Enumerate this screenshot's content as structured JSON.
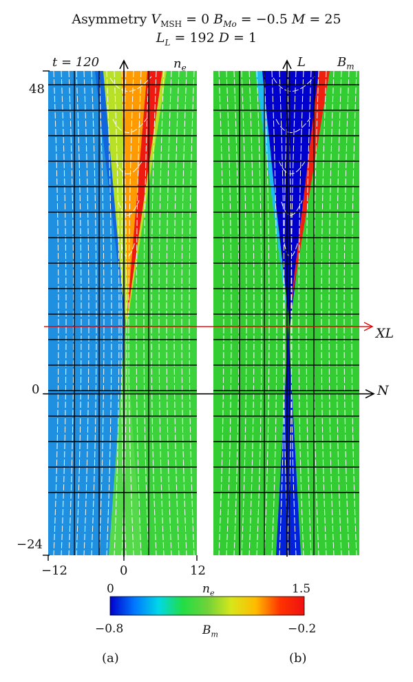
{
  "title": {
    "line1": {
      "prefix": "Asymmetry ",
      "v": "V",
      "v_sub": "MSH",
      "eq1": " = 0 ",
      "b": "B",
      "b_sub": "Mo",
      "eq2": " = −0.5 ",
      "m": "M",
      "eq3": " = 25"
    },
    "line2": {
      "l": "L",
      "l_sub": "L",
      "eq1": " = 192 ",
      "d": "D",
      "eq2": " = 1"
    }
  },
  "panel_a": {
    "time_label": "t = 120",
    "field_label": "n",
    "field_sub": "e",
    "label": "(a)",
    "x_ticks": [
      "−12",
      "0",
      "12"
    ],
    "x_range": [
      -12,
      12
    ],
    "y_ticks": [
      "48",
      "0",
      "−24"
    ],
    "y_range": [
      -24,
      48
    ]
  },
  "panel_b": {
    "axis_top_label": "L",
    "field_label": "B",
    "field_sub": "m",
    "label": "(b)"
  },
  "axes": {
    "x_line_label": "XL",
    "n_axis_label": "N",
    "xline_y": 10
  },
  "colorbar": {
    "top_label_left": "0",
    "top_label_right": "1.5",
    "top_name": "n",
    "top_name_sub": "e",
    "bottom_label_left": "−0.8",
    "bottom_label_right": "−0.2",
    "bottom_name": "B",
    "bottom_name_sub": "m",
    "ne_range": [
      0,
      1.5
    ],
    "bm_range": [
      -0.8,
      -0.2
    ],
    "colors": [
      "#0000cc",
      "#0077ff",
      "#00d8e6",
      "#22dd44",
      "#6fd23a",
      "#d8e61a",
      "#ffbb00",
      "#ff3300",
      "#ee1111"
    ]
  },
  "chart_data": {
    "type": "heatmap",
    "panels": [
      {
        "id": "a",
        "quantity": "n_e",
        "time": 120,
        "x_range": [
          -12,
          12
        ],
        "y_range": [
          -24,
          48
        ]
      },
      {
        "id": "b",
        "quantity": "B_m",
        "time": 120,
        "x_range": [
          -12,
          12
        ],
        "y_range": [
          -24,
          48
        ]
      }
    ],
    "grid": true
  }
}
